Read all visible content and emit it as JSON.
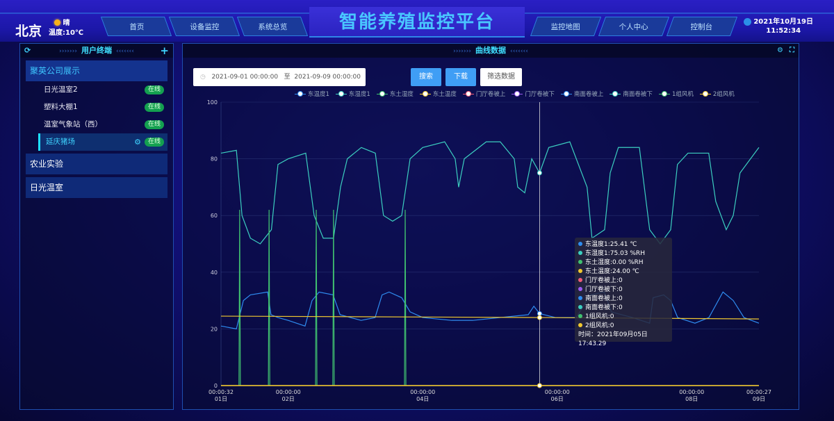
{
  "header": {
    "city": "北京",
    "weather": "晴",
    "temperature": "温度:10℃",
    "title": "智能养殖监控平台",
    "nav_left": [
      "首页",
      "设备监控",
      "系统总览"
    ],
    "nav_right": [
      "监控地图",
      "个人中心",
      "控制台"
    ],
    "date": "2021年10月19日",
    "time": "11:52:34"
  },
  "sidebar": {
    "title": "用户终端",
    "groups": [
      {
        "label": "聚英公司展示",
        "open": true,
        "items": [
          {
            "label": "日光温室2",
            "status": "在线"
          },
          {
            "label": "塑料大棚1",
            "status": "在线"
          },
          {
            "label": "温室气象站（西）",
            "status": "在线"
          },
          {
            "label": "延庆猪场",
            "status": "在线",
            "selected": true
          }
        ]
      },
      {
        "label": "农业实验",
        "items": []
      },
      {
        "label": "日光温室",
        "items": []
      }
    ]
  },
  "main": {
    "title": "曲线数据",
    "date_start": "2021-09-01 00:00:00",
    "date_sep": "至",
    "date_end": "2021-09-09 00:00:00",
    "search_label": "搜索",
    "download_label": "下载",
    "filter_label": "筛选数据"
  },
  "tooltip": {
    "rows": [
      "东温度1:25.41 ℃",
      "东湿度1:75.03 %RH",
      "东土湿度:0.00 %RH",
      "东土温度:24.00 ℃",
      "门厅卷被上:0",
      "门厅卷被下:0",
      "南面卷被上:0",
      "南面卷被下:0",
      "1组风机:0",
      "2组风机:0"
    ],
    "colors": [
      "#2f8cf0",
      "#3ccfc0",
      "#40c070",
      "#f0c830",
      "#f05a78",
      "#9a5af0",
      "#2f8cf0",
      "#3ccfc0",
      "#40c070",
      "#f0c830"
    ],
    "time": "时间：2021年09月05日 17:43.29"
  },
  "chart_data": {
    "type": "line",
    "ylim": [
      0,
      100
    ],
    "yticks": [
      0,
      20,
      40,
      60,
      80,
      100
    ],
    "xlim": [
      "2021-09-01 00:00:32",
      "2021-09-09 00:00:27"
    ],
    "xticks": [
      {
        "t": "2021-09-01 00:00:32",
        "l1": "00:00:32",
        "l2": "01日"
      },
      {
        "t": "2021-09-02 00:00:00",
        "l1": "00:00:00",
        "l2": "02日"
      },
      {
        "t": "2021-09-04 00:00:00",
        "l1": "00:00:00",
        "l2": "04日"
      },
      {
        "t": "2021-09-06 00:00:00",
        "l1": "00:00:00",
        "l2": "06日"
      },
      {
        "t": "2021-09-08 00:00:00",
        "l1": "00:00:00",
        "l2": "08日"
      },
      {
        "t": "2021-09-09 00:00:27",
        "l1": "00:00:27",
        "l2": "09日"
      }
    ],
    "cursor": "2021-09-05 17:43:29",
    "grid": true,
    "legend_position": "top",
    "series": [
      {
        "name": "东温度1",
        "color": "#2f8cf0",
        "points": [
          [
            "2021-09-01 00:00",
            21
          ],
          [
            "2021-09-01 05:30",
            20
          ],
          [
            "2021-09-01 08:00",
            30
          ],
          [
            "2021-09-01 10:30",
            32
          ],
          [
            "2021-09-01 16:40",
            33
          ],
          [
            "2021-09-01 17:50",
            25
          ],
          [
            "2021-09-01 20:20",
            24
          ],
          [
            "2021-09-02 00:00",
            23
          ],
          [
            "2021-09-02 06:00",
            21
          ],
          [
            "2021-09-02 08:30",
            30
          ],
          [
            "2021-09-02 11:00",
            33
          ],
          [
            "2021-09-02 16:00",
            32
          ],
          [
            "2021-09-02 18:30",
            25
          ],
          [
            "2021-09-03 02:00",
            23
          ],
          [
            "2021-09-03 07:00",
            24
          ],
          [
            "2021-09-03 09:30",
            32
          ],
          [
            "2021-09-03 12:00",
            33
          ],
          [
            "2021-09-03 16:30",
            31
          ],
          [
            "2021-09-03 19:30",
            26
          ],
          [
            "2021-09-04 00:00",
            24
          ],
          [
            "2021-09-04 10:20",
            23
          ],
          [
            "2021-09-04 17:50",
            23
          ],
          [
            "2021-09-05 03:40",
            24
          ],
          [
            "2021-09-05 13:40",
            25
          ],
          [
            "2021-09-05 15:40",
            28
          ],
          [
            "2021-09-05 17:43",
            25.41
          ],
          [
            "2021-09-05 23:20",
            24
          ],
          [
            "2021-09-06 06:50",
            24
          ],
          [
            "2021-09-06 11:50",
            32
          ],
          [
            "2021-09-06 16:50",
            33
          ],
          [
            "2021-09-06 19:20",
            26
          ],
          [
            "2021-09-07 02:50",
            24
          ],
          [
            "2021-09-07 09:00",
            22
          ],
          [
            "2021-09-07 10:15",
            31
          ],
          [
            "2021-09-07 14:00",
            32
          ],
          [
            "2021-09-07 16:30",
            30
          ],
          [
            "2021-09-07 19:00",
            24
          ],
          [
            "2021-09-08 01:10",
            22
          ],
          [
            "2021-09-08 06:10",
            24
          ],
          [
            "2021-09-08 11:10",
            33
          ],
          [
            "2021-09-08 14:50",
            30
          ],
          [
            "2021-09-08 18:40",
            24
          ],
          [
            "2021-09-09 00:00",
            22
          ]
        ]
      },
      {
        "name": "东湿度1",
        "color": "#3ccfc0",
        "points": [
          [
            "2021-09-01 00:00",
            82
          ],
          [
            "2021-09-01 05:30",
            83
          ],
          [
            "2021-09-01 07:30",
            60
          ],
          [
            "2021-09-01 10:30",
            52
          ],
          [
            "2021-09-01 14:00",
            50
          ],
          [
            "2021-09-01 18:00",
            55
          ],
          [
            "2021-09-01 20:20",
            78
          ],
          [
            "2021-09-02 00:00",
            80
          ],
          [
            "2021-09-02 06:15",
            82
          ],
          [
            "2021-09-02 09:15",
            60
          ],
          [
            "2021-09-02 12:30",
            52
          ],
          [
            "2021-09-02 16:10",
            52
          ],
          [
            "2021-09-02 18:40",
            70
          ],
          [
            "2021-09-02 21:05",
            80
          ],
          [
            "2021-09-03 02:05",
            84
          ],
          [
            "2021-09-03 07:05",
            82
          ],
          [
            "2021-09-03 10:00",
            60
          ],
          [
            "2021-09-03 13:15",
            58
          ],
          [
            "2021-09-03 16:30",
            60
          ],
          [
            "2021-09-03 19:30",
            80
          ],
          [
            "2021-09-04 00:00",
            84
          ],
          [
            "2021-09-04 07:50",
            86
          ],
          [
            "2021-09-04 11:35",
            80
          ],
          [
            "2021-09-04 12:50",
            70
          ],
          [
            "2021-09-04 14:50",
            80
          ],
          [
            "2021-09-04 22:40",
            86
          ],
          [
            "2021-09-05 03:40",
            86
          ],
          [
            "2021-09-05 08:40",
            80
          ],
          [
            "2021-09-05 09:55",
            70
          ],
          [
            "2021-09-05 12:25",
            68
          ],
          [
            "2021-09-05 14:55",
            80
          ],
          [
            "2021-09-05 17:43",
            75.03
          ],
          [
            "2021-09-05 21:00",
            84
          ],
          [
            "2021-09-06 04:30",
            86
          ],
          [
            "2021-09-06 10:40",
            70
          ],
          [
            "2021-09-06 12:25",
            52
          ],
          [
            "2021-09-06 16:55",
            55
          ],
          [
            "2021-09-06 18:55",
            75
          ],
          [
            "2021-09-06 21:50",
            84
          ],
          [
            "2021-09-07 05:20",
            84
          ],
          [
            "2021-09-07 09:00",
            55
          ],
          [
            "2021-09-07 12:45",
            50
          ],
          [
            "2021-09-07 16:30",
            55
          ],
          [
            "2021-09-07 18:55",
            78
          ],
          [
            "2021-09-07 22:40",
            82
          ],
          [
            "2021-09-08 06:05",
            82
          ],
          [
            "2021-09-08 08:35",
            65
          ],
          [
            "2021-09-08 12:20",
            55
          ],
          [
            "2021-09-08 14:50",
            60
          ],
          [
            "2021-09-08 17:15",
            75
          ],
          [
            "2021-09-09 00:00",
            84
          ]
        ]
      },
      {
        "name": "东土湿度",
        "color": "#40c070",
        "spikes": [
          [
            "2021-09-01 06:40",
            62
          ],
          [
            "2021-09-01 17:10",
            62
          ],
          [
            "2021-09-02 10:00",
            62
          ],
          [
            "2021-09-02 16:10",
            62
          ],
          [
            "2021-09-03 17:45",
            62
          ]
        ]
      },
      {
        "name": "东土温度",
        "color": "#f0c830",
        "points": [
          [
            "2021-09-01 00:00",
            24.5
          ],
          [
            "2021-09-05 17:43",
            24
          ],
          [
            "2021-09-09 00:00",
            23.5
          ]
        ]
      },
      {
        "name": "门厅卷被上",
        "color": "#f05a78",
        "points": []
      },
      {
        "name": "门厅卷被下",
        "color": "#9a5af0",
        "points": []
      },
      {
        "name": "南面卷被上",
        "color": "#2f8cf0",
        "points": []
      },
      {
        "name": "南面卷被下",
        "color": "#3ccfc0",
        "points": []
      },
      {
        "name": "1组风机",
        "color": "#40c070",
        "points": []
      },
      {
        "name": "2组风机",
        "color": "#f0c830",
        "points": [
          [
            "2021-09-01 00:00",
            0
          ],
          [
            "2021-09-09 00:00",
            0
          ]
        ]
      }
    ]
  }
}
